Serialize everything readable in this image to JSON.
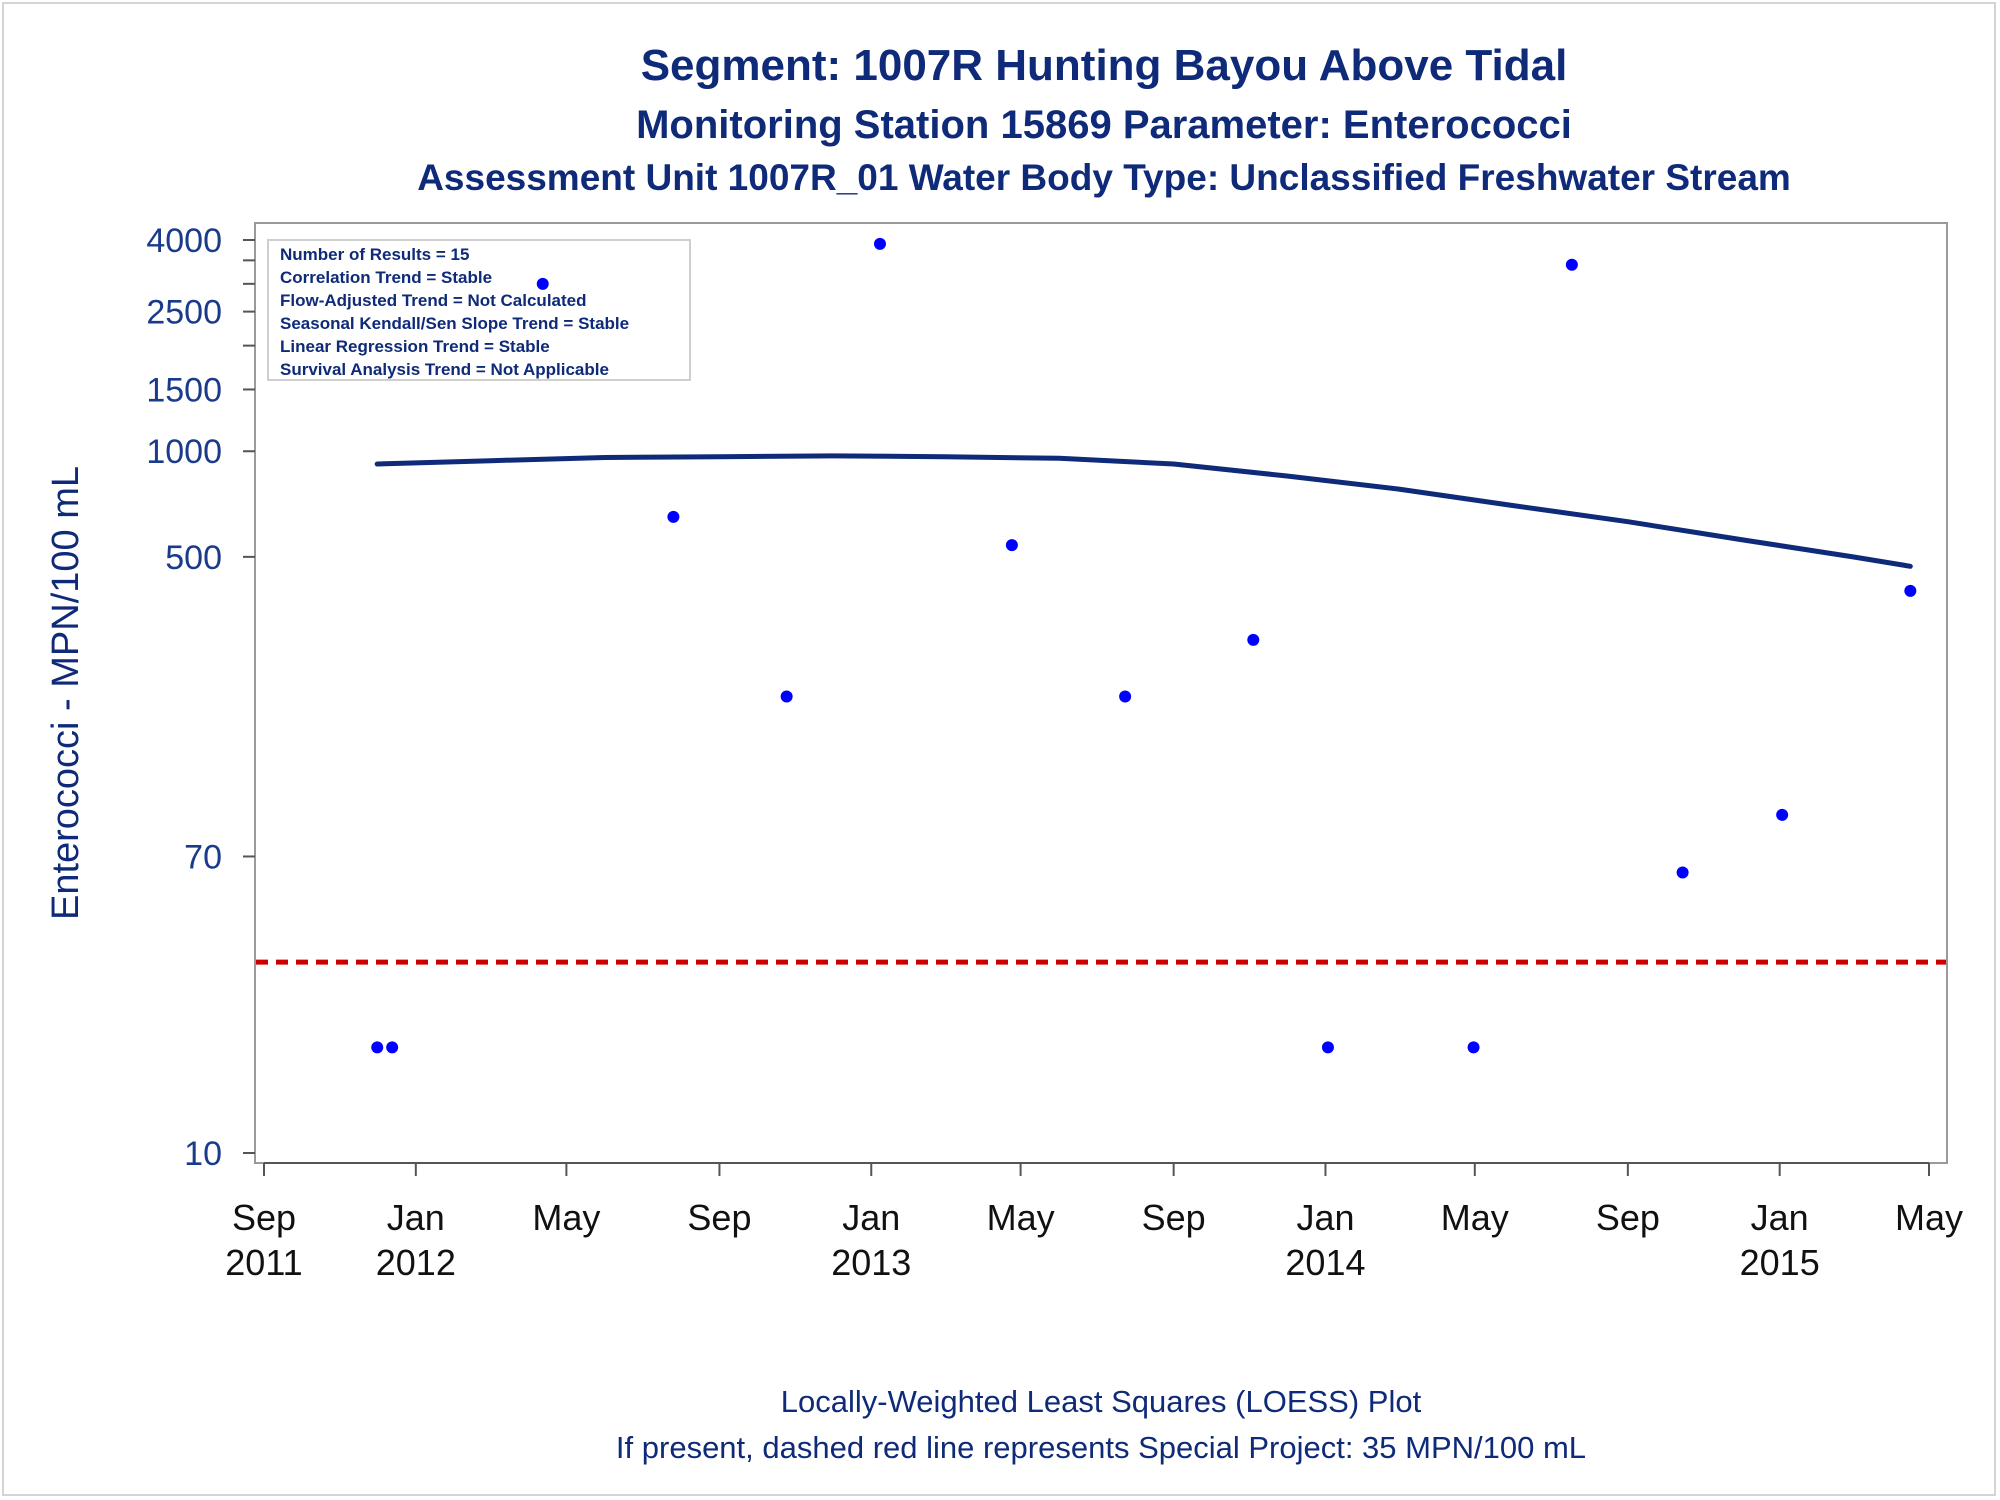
{
  "titles": [
    "Segment: 1007R  Hunting Bayou Above Tidal",
    "Monitoring Station 15869 Parameter: Enterococci",
    "Assessment Unit 1007R_01   Water Body Type: Unclassified Freshwater Stream"
  ],
  "stats_box": [
    "Number of Results = 15",
    "Correlation Trend = Stable",
    "Flow-Adjusted Trend = Not Calculated",
    "Seasonal Kendall/Sen Slope Trend = Stable",
    "Linear Regression Trend = Stable",
    "Survival Analysis Trend = Not Applicable"
  ],
  "footnotes": [
    "Locally-Weighted Least Squares (LOESS) Plot",
    "If present, dashed red line represents Special Project: 35 MPN/100 mL"
  ],
  "chart_data": {
    "type": "scatter",
    "ylabel": "Enterococci - MPN/100 mL",
    "xlabel": "",
    "yscale": "log",
    "ylim": [
      10,
      4000
    ],
    "xlim": [
      "2011-09-01",
      "2015-05-01"
    ],
    "grid": false,
    "y_ticks": [
      10,
      70,
      500,
      1000,
      1500,
      2500,
      4000
    ],
    "x_ticks": [
      {
        "date": "2011-09-01",
        "line1": "Sep",
        "line2": "2011"
      },
      {
        "date": "2012-01-01",
        "line1": "Jan",
        "line2": "2012"
      },
      {
        "date": "2012-05-01",
        "line1": "May",
        "line2": ""
      },
      {
        "date": "2012-09-01",
        "line1": "Sep",
        "line2": ""
      },
      {
        "date": "2013-01-01",
        "line1": "Jan",
        "line2": "2013"
      },
      {
        "date": "2013-05-01",
        "line1": "May",
        "line2": ""
      },
      {
        "date": "2013-09-01",
        "line1": "Sep",
        "line2": ""
      },
      {
        "date": "2014-01-01",
        "line1": "Jan",
        "line2": "2014"
      },
      {
        "date": "2014-05-01",
        "line1": "May",
        "line2": ""
      },
      {
        "date": "2014-09-01",
        "line1": "Sep",
        "line2": ""
      },
      {
        "date": "2015-01-01",
        "line1": "Jan",
        "line2": "2015"
      },
      {
        "date": "2015-05-01",
        "line1": "May",
        "line2": ""
      }
    ],
    "points": [
      {
        "x": "2011-12-01",
        "y": 20
      },
      {
        "x": "2011-12-13",
        "y": 20
      },
      {
        "x": "2012-04-12",
        "y": 3000
      },
      {
        "x": "2012-07-26",
        "y": 650
      },
      {
        "x": "2012-10-25",
        "y": 200
      },
      {
        "x": "2013-01-08",
        "y": 3900
      },
      {
        "x": "2013-04-24",
        "y": 540
      },
      {
        "x": "2013-07-24",
        "y": 200
      },
      {
        "x": "2013-11-04",
        "y": 290
      },
      {
        "x": "2014-01-03",
        "y": 20
      },
      {
        "x": "2014-04-30",
        "y": 20
      },
      {
        "x": "2014-07-18",
        "y": 3400
      },
      {
        "x": "2014-10-15",
        "y": 63
      },
      {
        "x": "2015-01-03",
        "y": 92
      },
      {
        "x": "2015-04-16",
        "y": 400
      }
    ],
    "loess": [
      {
        "x": "2011-12-01",
        "y": 920
      },
      {
        "x": "2012-03-01",
        "y": 940
      },
      {
        "x": "2012-06-01",
        "y": 960
      },
      {
        "x": "2012-09-01",
        "y": 965
      },
      {
        "x": "2012-12-01",
        "y": 970
      },
      {
        "x": "2013-03-01",
        "y": 965
      },
      {
        "x": "2013-06-01",
        "y": 955
      },
      {
        "x": "2013-09-01",
        "y": 920
      },
      {
        "x": "2013-12-01",
        "y": 850
      },
      {
        "x": "2014-03-01",
        "y": 780
      },
      {
        "x": "2014-06-01",
        "y": 700
      },
      {
        "x": "2014-09-01",
        "y": 630
      },
      {
        "x": "2014-12-01",
        "y": 560
      },
      {
        "x": "2015-03-01",
        "y": 500
      },
      {
        "x": "2015-04-16",
        "y": 470
      }
    ],
    "reference_line": {
      "y": 35,
      "style": "dashed"
    },
    "colors": {
      "points": "#0000ff",
      "loess": "#0e2a78",
      "reference": "#cc0000",
      "text": "#0e2a78"
    }
  }
}
